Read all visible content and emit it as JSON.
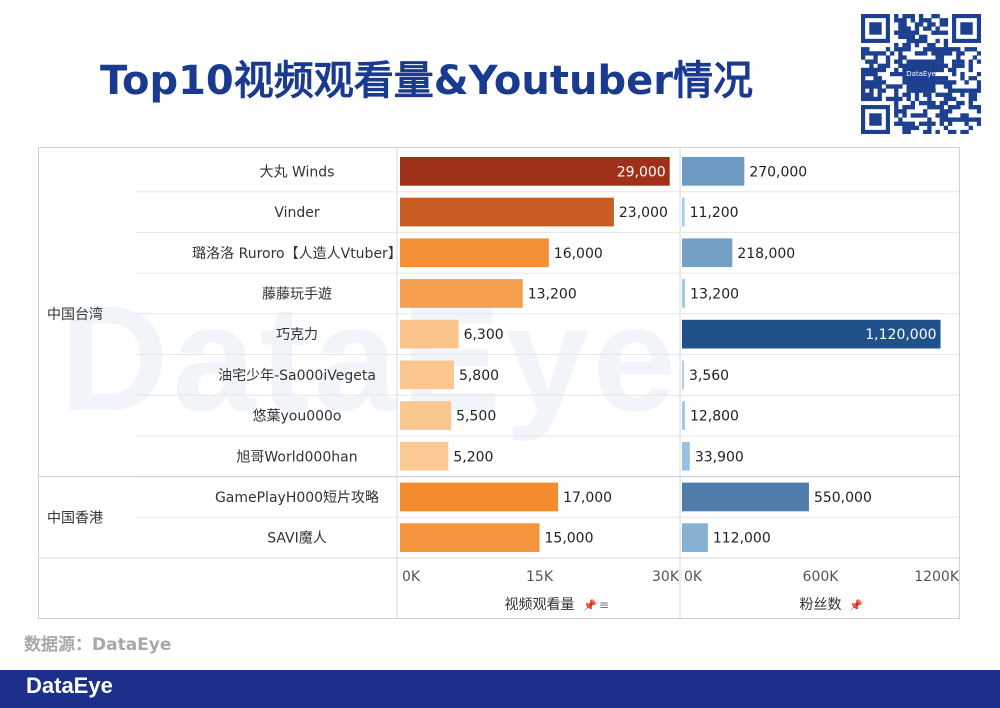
{
  "page": {
    "title": "Top10视频观看量&Youtuber情况",
    "source": "数据源：DataEye",
    "footer_logo": "DataEye",
    "watermark": "DataEye",
    "qr_label": "DataEye"
  },
  "chart_data": {
    "type": "bar",
    "orientation": "horizontal",
    "groups": [
      {
        "name": "中国台湾",
        "count": 8
      },
      {
        "name": "中国香港",
        "count": 2
      }
    ],
    "categories": [
      "大丸 Winds",
      "Vinder",
      "璐洛洛 Ruroro【人造人Vtuber】",
      "藤藤玩手遊",
      "巧克力",
      "油宅少年-Sa000iVegeta",
      "悠葉you000o",
      "旭哥World000han",
      "GamePlayH000短片攻略",
      "SAVI魔人"
    ],
    "series": [
      {
        "name": "视频观看量",
        "values": [
          29000,
          23000,
          16000,
          13200,
          6300,
          5800,
          5500,
          5200,
          17000,
          15000
        ],
        "labels": [
          "29,000",
          "23,000",
          "16,000",
          "13,200",
          "6,300",
          "5,800",
          "5,500",
          "5,200",
          "17,000",
          "15,000"
        ],
        "xlim": [
          0,
          30000
        ],
        "ticks": [
          "0K",
          "15K",
          "30K"
        ],
        "tick_values": [
          0,
          15000,
          30000
        ],
        "color_low": "#fbc994",
        "color_mid": "#f28a2c",
        "color_high": "#a1301b"
      },
      {
        "name": "粉丝数",
        "values": [
          270000,
          11200,
          218000,
          13200,
          1120000,
          3560,
          12800,
          33900,
          550000,
          112000
        ],
        "labels": [
          "270,000",
          "11,200",
          "218,000",
          "13,200",
          "1,120,000",
          "3,560",
          "12,800",
          "33,900",
          "550,000",
          "112,000"
        ],
        "xlim": [
          0,
          1200000
        ],
        "ticks": [
          "0K",
          "600K",
          "1200K"
        ],
        "tick_values": [
          0,
          600000,
          1200000
        ],
        "color_low": "#a9d0ea",
        "color_high": "#21518a"
      }
    ],
    "grid": false,
    "legend": "none"
  }
}
